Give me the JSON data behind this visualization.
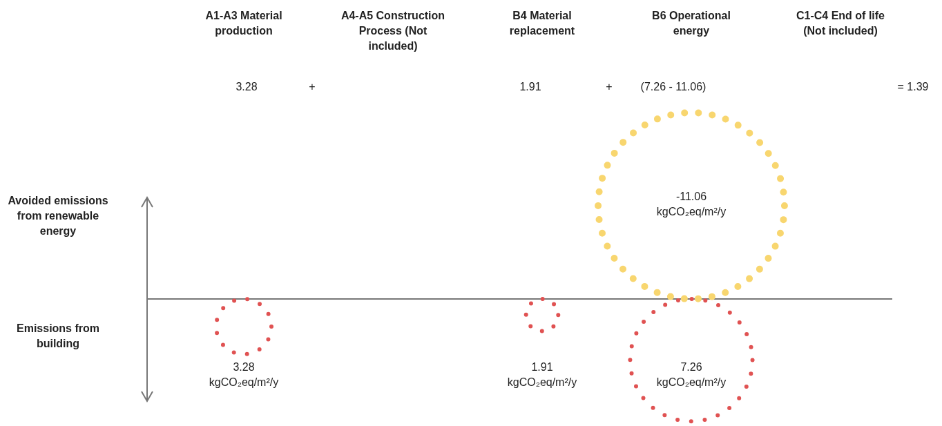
{
  "chart_data": {
    "type": "other",
    "categories": [
      "A1-A3 Material production",
      "A4-A5 Construction Process (Not included)",
      "B4 Material replacement",
      "B6 Operational energy",
      "C1-C4 End of life (Not included)"
    ],
    "series": [
      {
        "color": "#e05252",
        "values": [
          3.28,
          null,
          1.91,
          7.26,
          null
        ],
        "value_labels": [
          "3.28 kgCO₂eq/m²/y",
          null,
          "1.91 kgCO₂eq/m²/y",
          "7.26 kgCO₂eq/m²/y",
          null
        ]
      },
      {
        "color": "#f8d66f",
        "values": [
          null,
          null,
          null,
          -11.06,
          null
        ],
        "value_labels": [
          null,
          null,
          null,
          "-11.06 kgCO₂eq/m²/y",
          null
        ]
      }
    ],
    "annotations": [
      "3.28",
      "+",
      "1.91",
      "+",
      "(7.26 - 11.06)",
      "= 1.39",
      "Avoided emissions from renewable energy",
      "Emissions from building"
    ]
  }
}
